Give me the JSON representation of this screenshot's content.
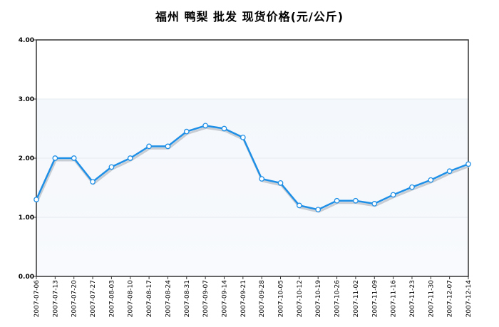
{
  "chart_data": {
    "type": "line",
    "title": "福州  鸭梨  批发  现货价格(元/公斤)",
    "xlabel": "",
    "ylabel": "",
    "ylim": [
      0,
      4
    ],
    "yticks": [
      "0.00",
      "1.00",
      "2.00",
      "3.00",
      "4.00"
    ],
    "grid": true,
    "categories": [
      "2007-07-06",
      "2007-07-13",
      "2007-07-20",
      "2007-07-27",
      "2007-08-03",
      "2007-08-10",
      "2007-08-17",
      "2007-08-24",
      "2007-08-31",
      "2007-09-07",
      "2007-09-14",
      "2007-09-21",
      "2007-09-28",
      "2007-10-05",
      "2007-10-12",
      "2007-10-19",
      "2007-10-26",
      "2007-11-02",
      "2007-11-09",
      "2007-11-16",
      "2007-11-23",
      "2007-11-30",
      "2007-12-07",
      "2007-12-14"
    ],
    "series": [
      {
        "name": "",
        "color": "#1e8fe6",
        "values": [
          1.3,
          2.0,
          2.0,
          1.6,
          1.85,
          2.0,
          2.2,
          2.2,
          2.45,
          2.55,
          2.5,
          2.35,
          1.65,
          1.58,
          1.2,
          1.13,
          1.28,
          1.28,
          1.23,
          1.38,
          1.51,
          1.63,
          1.78,
          1.9
        ]
      }
    ]
  }
}
